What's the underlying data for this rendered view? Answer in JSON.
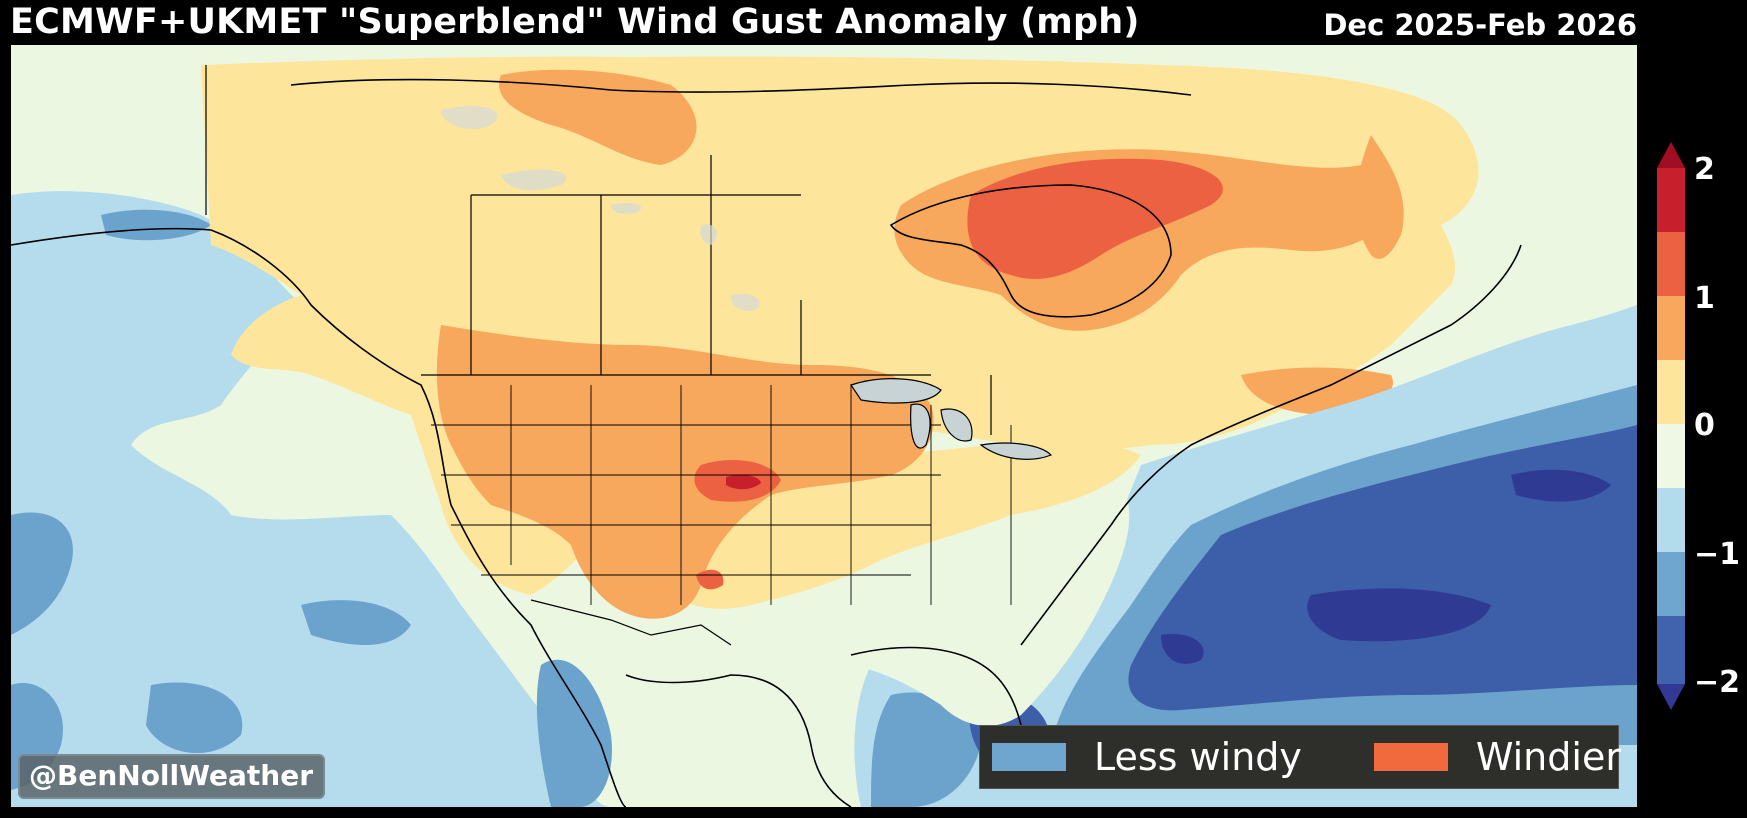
{
  "header": {
    "title": "ECMWF+UKMET \"Superblend\" Wind Gust Anomaly (mph)",
    "date_range": "Dec 2025-Feb 2026"
  },
  "watermark": "@BenNollWeather",
  "legend": {
    "items": [
      {
        "label": "Less windy",
        "color": "#6fa6cf"
      },
      {
        "label": "Windier",
        "color": "#f06a3e"
      }
    ]
  },
  "colorbar": {
    "ticks": [
      "2",
      "1",
      "0",
      "−1",
      "−2"
    ],
    "levels_color_top_to_bottom": [
      "#a10d22",
      "#c81f2c",
      "#ec6142",
      "#f7a85c",
      "#fde59c",
      "#eef8e4",
      "#b2dcec",
      "#6fa6cf",
      "#4163ad",
      "#323893"
    ]
  },
  "colors": {
    "strong_negative": "#2f3a93",
    "negative": "#3d5ea8",
    "moderate_negative": "#6ca3cc",
    "slight_negative": "#b4dced",
    "neutral": "#ecf7e2",
    "slight_positive": "#fde59c",
    "moderate_positive": "#f7a85c",
    "positive": "#ec6142",
    "strong_positive": "#c81f2c"
  }
}
